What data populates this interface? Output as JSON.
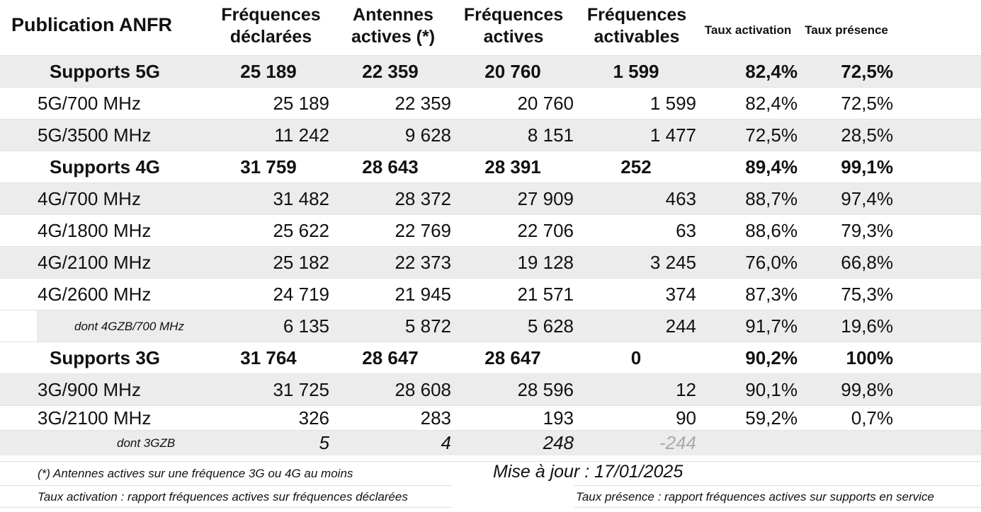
{
  "header": {
    "title": "Publication ANFR",
    "columns": [
      [
        "Fréquences",
        "déclarées"
      ],
      [
        "Antennes",
        "actives (*)"
      ],
      [
        "Fréquences",
        "actives"
      ],
      [
        "Fréquences",
        "activables"
      ]
    ],
    "taux_activation": "Taux activation",
    "taux_presence": "Taux présence"
  },
  "rows": [
    {
      "type": "support",
      "label": "Supports 5G",
      "values": [
        "25 189",
        "22 359",
        "20 760",
        "1 599",
        "82,4%",
        "72,5%"
      ],
      "bg": "gray"
    },
    {
      "type": "band",
      "label": "5G/700 MHz",
      "values": [
        "25 189",
        "22 359",
        "20 760",
        "1 599",
        "82,4%",
        "72,5%"
      ],
      "bg": "white"
    },
    {
      "type": "band",
      "label": "5G/3500 MHz",
      "values": [
        "11 242",
        "9 628",
        "8 151",
        "1 477",
        "72,5%",
        "28,5%"
      ],
      "bg": "gray"
    },
    {
      "type": "support",
      "label": "Supports 4G",
      "values": [
        "31 759",
        "28 643",
        "28 391",
        "252",
        "89,4%",
        "99,1%"
      ],
      "bg": "white"
    },
    {
      "type": "band",
      "label": "4G/700 MHz",
      "values": [
        "31 482",
        "28 372",
        "27 909",
        "463",
        "88,7%",
        "97,4%"
      ],
      "bg": "gray"
    },
    {
      "type": "band",
      "label": "4G/1800 MHz",
      "values": [
        "25 622",
        "22 769",
        "22 706",
        "63",
        "88,6%",
        "79,3%"
      ],
      "bg": "white"
    },
    {
      "type": "band",
      "label": "4G/2100 MHz",
      "values": [
        "25 182",
        "22 373",
        "19 128",
        "3 245",
        "76,0%",
        "66,8%"
      ],
      "bg": "gray"
    },
    {
      "type": "band",
      "label": "4G/2600 MHz",
      "values": [
        "24 719",
        "21 945",
        "21 571",
        "374",
        "87,3%",
        "75,3%"
      ],
      "bg": "white"
    },
    {
      "type": "sub",
      "label": "dont 4GZB/700 MHz",
      "values": [
        "6 135",
        "5 872",
        "5 628",
        "244",
        "91,7%",
        "19,6%"
      ],
      "bg": "indent"
    },
    {
      "type": "support",
      "label": "Supports 3G",
      "values": [
        "31 764",
        "28 647",
        "28 647",
        "0",
        "90,2%",
        "100%"
      ],
      "bg": "white"
    },
    {
      "type": "band",
      "label": "3G/900 MHz",
      "values": [
        "31 725",
        "28 608",
        "28 596",
        "12",
        "90,1%",
        "99,8%"
      ],
      "bg": "gray"
    },
    {
      "type": "band",
      "label": "3G/2100 MHz",
      "values": [
        "326",
        "283",
        "193",
        "90",
        "59,2%",
        "0,7%"
      ],
      "bg": "white"
    },
    {
      "type": "sub3",
      "label": "dont 3GZB",
      "values": [
        "5",
        "4",
        "248",
        "-244"
      ],
      "bg": "gray"
    }
  ],
  "footer": {
    "note": "(*) Antennes actives sur une fréquence 3G ou 4G au moins",
    "update": "Mise à jour : 17/01/2025",
    "def_activation": "Taux activation : rapport fréquences actives sur fréquences déclarées",
    "def_presence": "Taux présence : rapport fréquences actives sur supports en service"
  }
}
